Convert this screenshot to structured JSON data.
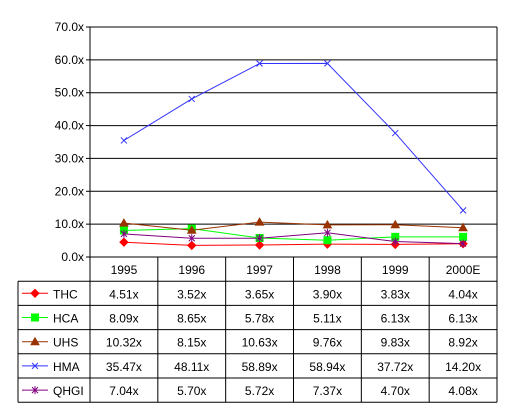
{
  "chart_data": {
    "type": "line",
    "categories": [
      "1995",
      "1996",
      "1997",
      "1998",
      "1999",
      "2000E"
    ],
    "y_ticks": [
      "0.0x",
      "10.0x",
      "20.0x",
      "30.0x",
      "40.0x",
      "50.0x",
      "60.0x",
      "70.0x"
    ],
    "ylim": [
      0,
      70
    ],
    "grid": true,
    "legend": "data-table-left",
    "series": [
      {
        "name": "THC",
        "color": "#ff0000",
        "marker": "diamond",
        "values": [
          4.51,
          3.52,
          3.65,
          3.9,
          3.83,
          4.04
        ],
        "labels": [
          "4.51x",
          "3.52x",
          "3.65x",
          "3.90x",
          "3.83x",
          "4.04x"
        ]
      },
      {
        "name": "HCA",
        "color": "#00ff00",
        "marker": "square",
        "values": [
          8.09,
          8.65,
          5.78,
          5.11,
          6.13,
          6.13
        ],
        "labels": [
          "8.09x",
          "8.65x",
          "5.78x",
          "5.11x",
          "6.13x",
          "6.13x"
        ]
      },
      {
        "name": "UHS",
        "color": "#993300",
        "marker": "triangle",
        "values": [
          10.32,
          8.15,
          10.63,
          9.76,
          9.83,
          8.92
        ],
        "labels": [
          "10.32x",
          "8.15x",
          "10.63x",
          "9.76x",
          "9.83x",
          "8.92x"
        ]
      },
      {
        "name": "HMA",
        "color": "#3333ff",
        "marker": "x",
        "values": [
          35.47,
          48.11,
          58.89,
          58.94,
          37.72,
          14.2
        ],
        "labels": [
          "35.47x",
          "48.11x",
          "58.89x",
          "58.94x",
          "37.72x",
          "14.20x"
        ]
      },
      {
        "name": "QHGI",
        "color": "#800080",
        "marker": "star",
        "values": [
          7.04,
          5.7,
          5.72,
          7.37,
          4.7,
          4.08
        ],
        "labels": [
          "7.04x",
          "5.70x",
          "5.72x",
          "7.37x",
          "4.70x",
          "4.08x"
        ]
      }
    ]
  }
}
